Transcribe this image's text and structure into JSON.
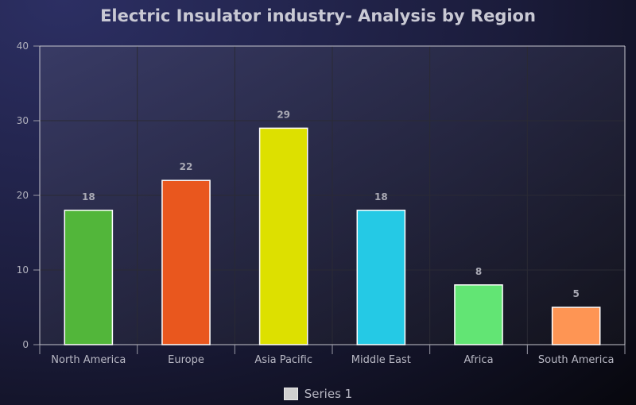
{
  "chart_data": {
    "type": "bar",
    "title": "Electric Insulator industry- Analysis by Region",
    "xlabel": "",
    "ylabel": "",
    "categories": [
      "North America",
      "Europe",
      "Asia Pacific",
      "Middle East",
      "Africa",
      "South America"
    ],
    "series": [
      {
        "name": "Series 1",
        "values": [
          18,
          22,
          29,
          18,
          8,
          5
        ]
      }
    ],
    "bar_colors": [
      "#52b63a",
      "#e9571e",
      "#dde000",
      "#25c9e5",
      "#62e574",
      "#fe9554"
    ],
    "ylim": [
      0,
      40
    ],
    "yticks": [
      0,
      10,
      20,
      30,
      40
    ],
    "grid": true,
    "legend_position": "bottom",
    "data_labels": true
  }
}
